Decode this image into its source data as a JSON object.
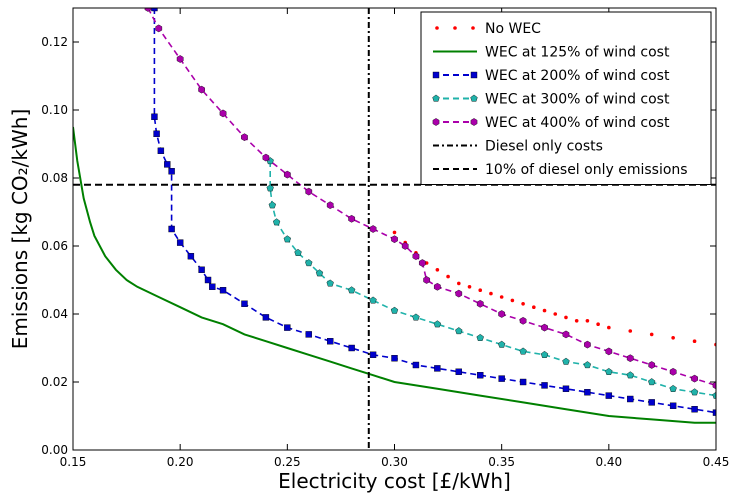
{
  "chart_data": {
    "type": "line",
    "xlabel": "Electricity cost [£/kWh]",
    "ylabel": "Emissions [kg CO₂/kWh]",
    "xlim": [
      0.15,
      0.45
    ],
    "ylim": [
      0.0,
      0.13
    ],
    "xticks": [
      "0.15",
      "0.20",
      "0.25",
      "0.30",
      "0.35",
      "0.40",
      "0.45"
    ],
    "yticks": [
      "0.00",
      "0.02",
      "0.04",
      "0.06",
      "0.08",
      "0.10",
      "0.12"
    ],
    "grid": false,
    "legend_position": "top-right",
    "series": [
      {
        "name": "No WEC",
        "color": "#ff0000",
        "style": "dots",
        "x": [
          0.3,
          0.305,
          0.31,
          0.315,
          0.32,
          0.325,
          0.33,
          0.335,
          0.34,
          0.345,
          0.35,
          0.355,
          0.36,
          0.365,
          0.37,
          0.375,
          0.38,
          0.385,
          0.39,
          0.395,
          0.4,
          0.41,
          0.42,
          0.43,
          0.44,
          0.45
        ],
        "y": [
          0.064,
          0.061,
          0.058,
          0.055,
          0.053,
          0.051,
          0.049,
          0.048,
          0.047,
          0.046,
          0.045,
          0.044,
          0.043,
          0.042,
          0.041,
          0.04,
          0.039,
          0.038,
          0.038,
          0.037,
          0.036,
          0.035,
          0.034,
          0.033,
          0.032,
          0.031
        ]
      },
      {
        "name": "WEC at 125% of wind cost",
        "color": "#008000",
        "style": "solid",
        "x": [
          0.15,
          0.152,
          0.155,
          0.158,
          0.16,
          0.165,
          0.17,
          0.175,
          0.18,
          0.19,
          0.2,
          0.21,
          0.22,
          0.23,
          0.24,
          0.25,
          0.26,
          0.27,
          0.28,
          0.29,
          0.3,
          0.32,
          0.34,
          0.36,
          0.38,
          0.4,
          0.42,
          0.44,
          0.45
        ],
        "y": [
          0.095,
          0.085,
          0.074,
          0.067,
          0.063,
          0.057,
          0.053,
          0.05,
          0.048,
          0.045,
          0.042,
          0.039,
          0.037,
          0.034,
          0.032,
          0.03,
          0.028,
          0.026,
          0.024,
          0.022,
          0.02,
          0.018,
          0.016,
          0.014,
          0.012,
          0.01,
          0.009,
          0.008,
          0.008
        ]
      },
      {
        "name": "WEC at 200% of wind cost",
        "color": "#0000cc",
        "style": "dashed-squares",
        "x": [
          0.188,
          0.188,
          0.189,
          0.191,
          0.194,
          0.196,
          0.196,
          0.2,
          0.205,
          0.21,
          0.213,
          0.215,
          0.22,
          0.23,
          0.24,
          0.25,
          0.26,
          0.27,
          0.28,
          0.29,
          0.3,
          0.31,
          0.32,
          0.33,
          0.34,
          0.35,
          0.36,
          0.37,
          0.38,
          0.39,
          0.4,
          0.41,
          0.42,
          0.43,
          0.44,
          0.45
        ],
        "y": [
          0.13,
          0.098,
          0.093,
          0.088,
          0.084,
          0.082,
          0.065,
          0.061,
          0.057,
          0.053,
          0.05,
          0.048,
          0.047,
          0.043,
          0.039,
          0.036,
          0.034,
          0.032,
          0.03,
          0.028,
          0.027,
          0.025,
          0.024,
          0.023,
          0.022,
          0.021,
          0.02,
          0.019,
          0.018,
          0.017,
          0.016,
          0.015,
          0.014,
          0.013,
          0.012,
          0.011
        ]
      },
      {
        "name": "WEC at 300% of wind cost",
        "color": "#20b2aa",
        "style": "dashed-pentagons",
        "x": [
          0.242,
          0.242,
          0.243,
          0.245,
          0.25,
          0.255,
          0.26,
          0.265,
          0.27,
          0.28,
          0.29,
          0.3,
          0.31,
          0.32,
          0.33,
          0.34,
          0.35,
          0.36,
          0.37,
          0.38,
          0.39,
          0.4,
          0.41,
          0.42,
          0.43,
          0.44,
          0.45
        ],
        "y": [
          0.085,
          0.077,
          0.072,
          0.067,
          0.062,
          0.058,
          0.055,
          0.052,
          0.049,
          0.047,
          0.044,
          0.041,
          0.039,
          0.037,
          0.035,
          0.033,
          0.031,
          0.029,
          0.028,
          0.026,
          0.025,
          0.023,
          0.022,
          0.02,
          0.018,
          0.017,
          0.016
        ]
      },
      {
        "name": "WEC at 400% of wind cost",
        "color": "#aa00aa",
        "style": "dashed-hexagons",
        "x": [
          0.185,
          0.19,
          0.2,
          0.21,
          0.22,
          0.23,
          0.24,
          0.25,
          0.26,
          0.27,
          0.28,
          0.29,
          0.3,
          0.305,
          0.31,
          0.313,
          0.315,
          0.32,
          0.33,
          0.34,
          0.35,
          0.36,
          0.37,
          0.38,
          0.39,
          0.4,
          0.41,
          0.42,
          0.43,
          0.44,
          0.45
        ],
        "y": [
          0.13,
          0.124,
          0.115,
          0.106,
          0.099,
          0.092,
          0.086,
          0.081,
          0.076,
          0.072,
          0.068,
          0.065,
          0.062,
          0.06,
          0.057,
          0.055,
          0.05,
          0.048,
          0.046,
          0.043,
          0.04,
          0.038,
          0.036,
          0.034,
          0.031,
          0.029,
          0.027,
          0.025,
          0.023,
          0.021,
          0.019
        ]
      }
    ],
    "reference_lines": [
      {
        "name": "Diesel only costs",
        "orientation": "vertical",
        "value": 0.288,
        "color": "#000000",
        "style": "dashdot"
      },
      {
        "name": "10% of diesel only emissions",
        "orientation": "horizontal",
        "value": 0.078,
        "color": "#000000",
        "style": "dashed"
      }
    ]
  }
}
